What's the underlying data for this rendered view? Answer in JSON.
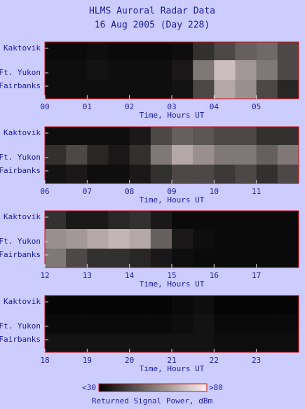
{
  "title": "HLMS Auroral Radar Data",
  "subtitle": "16 Aug 2005 (Day 228)",
  "colorbar": {
    "range": [
      30,
      80
    ],
    "min_label": "<30",
    "max_label": ">80",
    "label": "Returned Signal Power, dBm"
  },
  "chart_data": [
    {
      "type": "heatmap",
      "categories": [
        "Kaktovik",
        "Ft. Yukon",
        "Fairbanks"
      ],
      "xlabel": "Time, Hours UT",
      "xlim": [
        0,
        6
      ],
      "xticks": [
        {
          "value": 0,
          "label": "00"
        },
        {
          "value": 1,
          "label": "01"
        },
        {
          "value": 2,
          "label": "02"
        },
        {
          "value": 3,
          "label": "03"
        },
        {
          "value": 4,
          "label": "04"
        },
        {
          "value": 5,
          "label": "05"
        }
      ],
      "values": [
        [
          32,
          32,
          33,
          32,
          32,
          32,
          33,
          40,
          45,
          50,
          52,
          45
        ],
        [
          33,
          33,
          34,
          33,
          33,
          33,
          35,
          55,
          70,
          62,
          55,
          45
        ],
        [
          33,
          33,
          33,
          33,
          33,
          33,
          34,
          45,
          65,
          60,
          45,
          38
        ]
      ]
    },
    {
      "type": "heatmap",
      "categories": [
        "Kaktovik",
        "Ft. Yukon",
        "Fairbanks"
      ],
      "xlabel": "Time, Hours UT",
      "xlim": [
        6,
        12
      ],
      "xticks": [
        {
          "value": 6,
          "label": "06"
        },
        {
          "value": 7,
          "label": "07"
        },
        {
          "value": 8,
          "label": "08"
        },
        {
          "value": 9,
          "label": "09"
        },
        10,
        11
      ],
      "values": [
        [
          33,
          33,
          33,
          33,
          35,
          45,
          50,
          48,
          45,
          45,
          40,
          40
        ],
        [
          40,
          45,
          38,
          35,
          40,
          55,
          65,
          60,
          55,
          55,
          50,
          55
        ],
        [
          34,
          35,
          33,
          33,
          35,
          40,
          45,
          45,
          42,
          45,
          40,
          45
        ]
      ]
    },
    {
      "type": "heatmap",
      "categories": [
        "Kaktovik",
        "Ft. Yukon",
        "Fairbanks"
      ],
      "xlabel": "Time, Hours UT",
      "xlim": [
        12,
        18
      ],
      "xticks": [
        12,
        13,
        14,
        15,
        16,
        17
      ],
      "values": [
        [
          40,
          35,
          35,
          38,
          40,
          35,
          32,
          32,
          32,
          32,
          32,
          32
        ],
        [
          60,
          62,
          65,
          68,
          65,
          50,
          35,
          33,
          32,
          32,
          32,
          32
        ],
        [
          55,
          45,
          40,
          40,
          38,
          35,
          33,
          32,
          32,
          32,
          32,
          32
        ]
      ]
    },
    {
      "type": "heatmap",
      "categories": [
        "Kaktovik",
        "Ft. Yukon",
        "Fairbanks"
      ],
      "xlabel": "Time, Hours UT",
      "xlim": [
        18,
        24
      ],
      "xticks": [
        18,
        19,
        20,
        21,
        22,
        23
      ],
      "values": [
        [
          31,
          31,
          31,
          31,
          31,
          31,
          32,
          33,
          31,
          31,
          31,
          31
        ],
        [
          32,
          32,
          32,
          32,
          32,
          32,
          33,
          34,
          32,
          32,
          32,
          32
        ],
        [
          34,
          34,
          34,
          34,
          34,
          34,
          34,
          34,
          33,
          33,
          33,
          33
        ]
      ]
    }
  ]
}
